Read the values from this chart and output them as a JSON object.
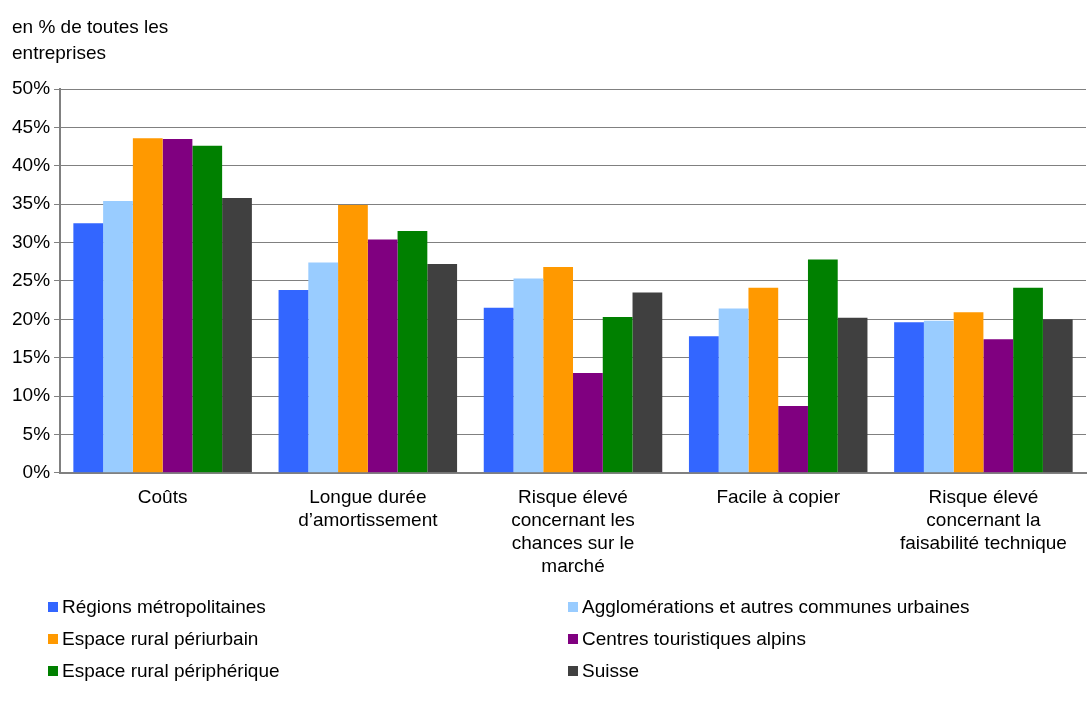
{
  "chart_data": {
    "type": "bar",
    "ylabel": "en % de toutes les entreprises",
    "categories": [
      "Coûts",
      "Longue durée d’amortissement",
      "Risque élevé concernant les chances sur le marché",
      "Facile à copier",
      "Risque élevé concernant la faisabilité technique"
    ],
    "series": [
      {
        "name": "Régions métropolitaines",
        "color": "#3366ff",
        "values": [
          32.5,
          23.8,
          21.5,
          17.8,
          19.6
        ]
      },
      {
        "name": "Agglomérations et autres communes urbaines",
        "color": "#99ccff",
        "values": [
          35.4,
          27.4,
          25.3,
          21.4,
          19.8
        ]
      },
      {
        "name": "Espace rural périurbain",
        "color": "#ff9900",
        "values": [
          43.6,
          34.9,
          26.8,
          24.1,
          20.9
        ]
      },
      {
        "name": "Centres touristiques alpins",
        "color": "#800080",
        "values": [
          43.5,
          30.4,
          13.0,
          8.7,
          17.4
        ]
      },
      {
        "name": "Espace rural périphérique",
        "color": "#008000",
        "values": [
          42.6,
          31.5,
          20.3,
          27.8,
          24.1
        ]
      },
      {
        "name": "Suisse",
        "color": "#404040",
        "values": [
          35.8,
          27.2,
          23.5,
          20.2,
          20.0
        ]
      }
    ],
    "ylim": [
      0,
      50
    ],
    "yticks": [
      {
        "value": 0,
        "label": "0%"
      },
      {
        "value": 5,
        "label": "5%"
      },
      {
        "value": 10,
        "label": "10%"
      },
      {
        "value": 15,
        "label": "15%"
      },
      {
        "value": 20,
        "label": "20%"
      },
      {
        "value": 25,
        "label": "25%"
      },
      {
        "value": 30,
        "label": "30%"
      },
      {
        "value": 35,
        "label": "35%"
      },
      {
        "value": 40,
        "label": "40%"
      },
      {
        "value": 45,
        "label": "45%"
      },
      {
        "value": 50,
        "label": "50%"
      }
    ],
    "grid": "y",
    "legend": "bottom"
  }
}
